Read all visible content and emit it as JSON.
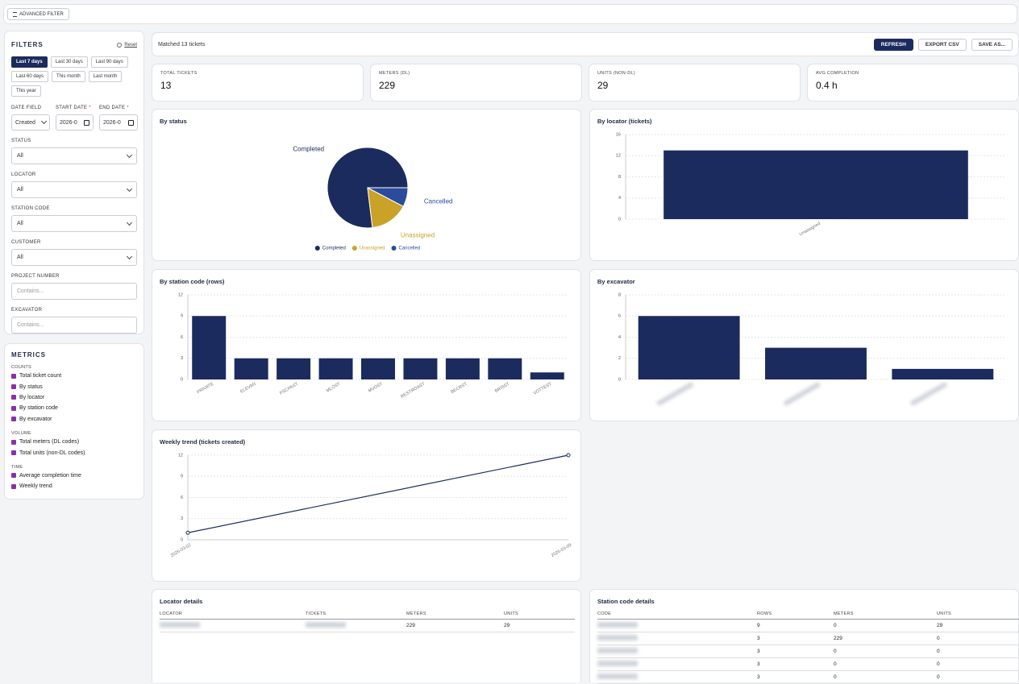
{
  "toolbar": {
    "advanced_filter": "ADVANCED FILTER"
  },
  "filters": {
    "title": "FILTERS",
    "reset": "Reset",
    "presets": [
      "Last 7 days",
      "Last 30 days",
      "Last 90 days",
      "Last 60 days",
      "This month",
      "Last month",
      "This year"
    ],
    "active_preset": 0,
    "date_field": {
      "label": "DATE FIELD",
      "value": "Created"
    },
    "start_date": {
      "label": "START DATE",
      "value": "2026-0"
    },
    "end_date": {
      "label": "END DATE",
      "value": "2026-0"
    },
    "required_mark": "*",
    "selects": [
      {
        "label": "STATUS",
        "value": "All"
      },
      {
        "label": "LOCATOR",
        "value": "All"
      },
      {
        "label": "STATION CODE",
        "value": "All"
      },
      {
        "label": "CUSTOMER",
        "value": "All"
      }
    ],
    "inputs": [
      {
        "label": "PROJECT NUMBER",
        "placeholder": "Contains..."
      },
      {
        "label": "EXCAVATOR",
        "placeholder": "Contains..."
      }
    ]
  },
  "metrics": {
    "title": "METRICS",
    "groups": [
      {
        "name": "COUNTS",
        "items": [
          "Total ticket count",
          "By status",
          "By locator",
          "By station code",
          "By excavator"
        ]
      },
      {
        "name": "VOLUME",
        "items": [
          "Total meters (DL codes)",
          "Total units (non-DL codes)"
        ]
      },
      {
        "name": "TIME",
        "items": [
          "Average completion time",
          "Weekly trend"
        ]
      }
    ]
  },
  "header": {
    "matched": "Matched 13 tickets",
    "buttons": [
      "REFRESH",
      "EXPORT CSV",
      "SAVE AS..."
    ]
  },
  "cards": [
    {
      "label": "TOTAL TICKETS",
      "value": 13
    },
    {
      "label": "METERS (DL)",
      "value": 229
    },
    {
      "label": "UNITS (NON-DL)",
      "value": 29
    },
    {
      "label": "AVG COMPLETION",
      "value": "0.4 h"
    }
  ],
  "chart_data": [
    {
      "type": "pie",
      "title": "By status",
      "categories": [
        "Completed",
        "Unassigned",
        "Cancelled"
      ],
      "values": [
        10,
        2,
        1
      ],
      "colors": [
        "#1c2b5e",
        "#c9a227",
        "#2b4c9b"
      ],
      "legend": "bottom"
    },
    {
      "type": "bar",
      "title": "By locator (tickets)",
      "categories": [
        "Unassigned"
      ],
      "values": [
        13
      ],
      "color": "#1c2b5e",
      "ylim": [
        0,
        16
      ],
      "yticks": [
        0,
        4,
        8,
        12,
        16
      ],
      "grid": true
    },
    {
      "type": "bar",
      "title": "By station code (rows)",
      "categories": [
        "PRIVATE",
        "ELEVAN",
        "PSCPAST",
        "MLOST",
        "MVOST",
        "RESTROAST",
        "BECRST",
        "BRISST",
        "VOTTEST"
      ],
      "values": [
        9,
        3,
        3,
        3,
        3,
        3,
        3,
        3,
        1
      ],
      "color": "#1c2b5e",
      "ylim": [
        0,
        12
      ],
      "yticks": [
        0,
        3,
        6,
        9,
        12
      ],
      "grid": true
    },
    {
      "type": "bar",
      "title": "By excavator",
      "categories": [
        null,
        null,
        null
      ],
      "values": [
        6,
        3,
        1
      ],
      "color": "#1c2b5e",
      "ylim": [
        0,
        8
      ],
      "yticks": [
        0,
        2,
        4,
        6,
        8
      ],
      "grid": true
    },
    {
      "type": "line",
      "title": "Weekly trend (tickets created)",
      "x": [
        "2026-03-02",
        "2026-03-09"
      ],
      "values": [
        1,
        12
      ],
      "color": "#1c2b5e",
      "ylim": [
        0,
        12
      ],
      "yticks": [
        0,
        3,
        6,
        9,
        12
      ],
      "grid": true
    }
  ],
  "tables": [
    {
      "title": "Locator details",
      "columns": [
        "LOCATOR",
        "TICKETS",
        "METERS",
        "UNITS"
      ],
      "rows": [
        [
          null,
          null,
          229,
          29
        ]
      ]
    },
    {
      "title": "Station code details",
      "columns": [
        "CODE",
        "ROWS",
        "METERS",
        "UNITS"
      ],
      "rows": [
        [
          null,
          9,
          0,
          29
        ],
        [
          null,
          3,
          229,
          0
        ],
        [
          null,
          3,
          0,
          0
        ],
        [
          null,
          3,
          0,
          0
        ],
        [
          null,
          3,
          0,
          0
        ]
      ]
    }
  ]
}
